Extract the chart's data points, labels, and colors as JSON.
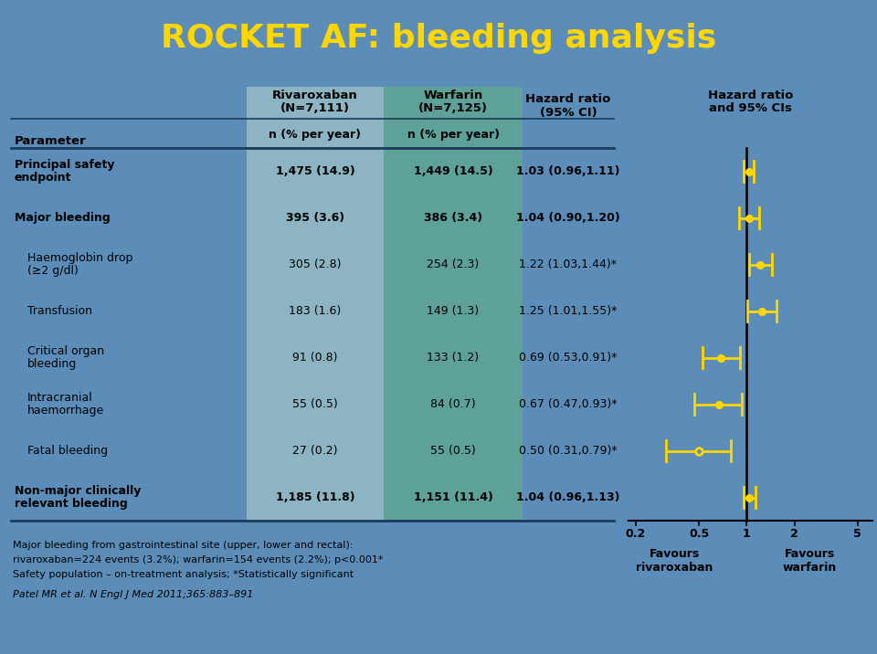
{
  "title": "ROCKET AF: bleeding analysis",
  "title_color": "#FFD700",
  "bg_color": "#5B8DB8",
  "col1_bg": "#AECFCA",
  "col2_bg": "#5FAA8C",
  "rows": [
    {
      "parameter": [
        "Principal safety",
        "endpoint"
      ],
      "rivaroxaban": "1,475 (14.9)",
      "warfarin": "1,449 (14.5)",
      "hazard_text": "1.03 (0.96,1.11)",
      "hr": 1.03,
      "ci_low": 0.96,
      "ci_high": 1.11,
      "bold": true,
      "open_marker": false
    },
    {
      "parameter": [
        "Major bleeding"
      ],
      "rivaroxaban": "395 (3.6)",
      "warfarin": "386 (3.4)",
      "hazard_text": "1.04 (0.90,1.20)",
      "hr": 1.04,
      "ci_low": 0.9,
      "ci_high": 1.2,
      "bold": true,
      "open_marker": false
    },
    {
      "parameter": [
        "Haemoglobin drop",
        "(≥2 g/dl)"
      ],
      "rivaroxaban": "305 (2.8)",
      "warfarin": "254 (2.3)",
      "hazard_text": "1.22 (1.03,1.44)*",
      "hr": 1.22,
      "ci_low": 1.03,
      "ci_high": 1.44,
      "bold": false,
      "open_marker": false
    },
    {
      "parameter": [
        "Transfusion"
      ],
      "rivaroxaban": "183 (1.6)",
      "warfarin": "149 (1.3)",
      "hazard_text": "1.25 (1.01,1.55)*",
      "hr": 1.25,
      "ci_low": 1.01,
      "ci_high": 1.55,
      "bold": false,
      "open_marker": false
    },
    {
      "parameter": [
        "Critical organ",
        "bleeding"
      ],
      "rivaroxaban": "91 (0.8)",
      "warfarin": "133 (1.2)",
      "hazard_text": "0.69 (0.53,0.91)*",
      "hr": 0.69,
      "ci_low": 0.53,
      "ci_high": 0.91,
      "bold": false,
      "open_marker": false
    },
    {
      "parameter": [
        "Intracranial",
        "haemorrhage"
      ],
      "rivaroxaban": "55 (0.5)",
      "warfarin": "84 (0.7)",
      "hazard_text": "0.67 (0.47,0.93)*",
      "hr": 0.67,
      "ci_low": 0.47,
      "ci_high": 0.93,
      "bold": false,
      "open_marker": false
    },
    {
      "parameter": [
        "Fatal bleeding"
      ],
      "rivaroxaban": "27 (0.2)",
      "warfarin": "55 (0.5)",
      "hazard_text": "0.50 (0.31,0.79)*",
      "hr": 0.5,
      "ci_low": 0.31,
      "ci_high": 0.79,
      "bold": false,
      "open_marker": true
    },
    {
      "parameter": [
        "Non-major clinically",
        "relevant bleeding"
      ],
      "rivaroxaban": "1,185 (11.8)",
      "warfarin": "1,151 (11.4)",
      "hazard_text": "1.04 (0.96,1.13)",
      "hr": 1.04,
      "ci_low": 0.96,
      "ci_high": 1.13,
      "bold": true,
      "open_marker": false
    }
  ],
  "footnote1": "Major bleeding from gastrointestinal site (upper, lower and rectal):",
  "footnote2": "rivaroxaban=224 events (3.2%); warfarin=154 events (2.2%); p<0.001*",
  "footnote3": "Safety population – on-treatment analysis; *Statistically significant",
  "citation": "Patel MR et al. N Engl J Med 2011;365:883–891",
  "plot_xticks": [
    0.2,
    0.5,
    1,
    2,
    5
  ],
  "marker_color": "#FFD700",
  "forest_bg": "#5B8DB8",
  "line_dark": "#1A3A5A"
}
